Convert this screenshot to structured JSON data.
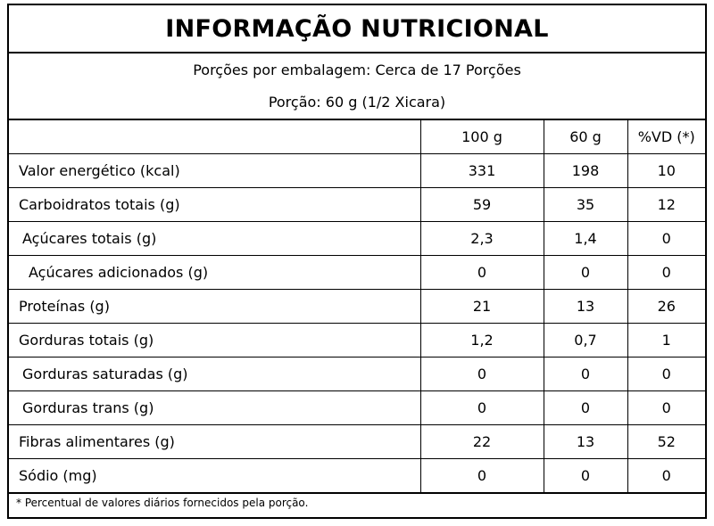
{
  "title": "INFORMAÇÃO NUTRICIONAL",
  "servings_per_package": "Porções por embalagem: Cerca de 17 Porções",
  "serving_size": "Porção: 60 g (1/2 Xicara)",
  "headers": [
    "",
    "100 g",
    "60 g",
    "%VD (*)"
  ],
  "rows": [
    {
      "label": "Valor energético (kcal)",
      "per100": "331",
      "per60": "198",
      "vd": "10"
    },
    {
      "label": "Carboidratos totais (g)",
      "per100": "59",
      "per60": "35",
      "vd": "12"
    },
    {
      "label": "Açúcares totais (g)",
      "per100": "2,3",
      "per60": "1,4",
      "vd": "0"
    },
    {
      "label": "Açúcares adicionados (g)",
      "per100": "0",
      "per60": "0",
      "vd": "0"
    },
    {
      "label": "Proteínas (g)",
      "per100": "21",
      "per60": "13",
      "vd": "26"
    },
    {
      "label": "Gorduras totais (g)",
      "per100": "1,2",
      "per60": "0,7",
      "vd": "1"
    },
    {
      "label": "Gorduras saturadas (g)",
      "per100": "0",
      "per60": "0",
      "vd": "0"
    },
    {
      "label": "Gorduras trans (g)",
      "per100": "0",
      "per60": "0",
      "vd": "0"
    },
    {
      "label": "Fibras alimentares (g)",
      "per100": "22",
      "per60": "13",
      "vd": "52"
    },
    {
      "label": "Sódio (mg)",
      "per100": "0",
      "per60": "0",
      "vd": "0"
    }
  ],
  "footnote": "* Percentual de valores diários fornecidos pela porção."
}
